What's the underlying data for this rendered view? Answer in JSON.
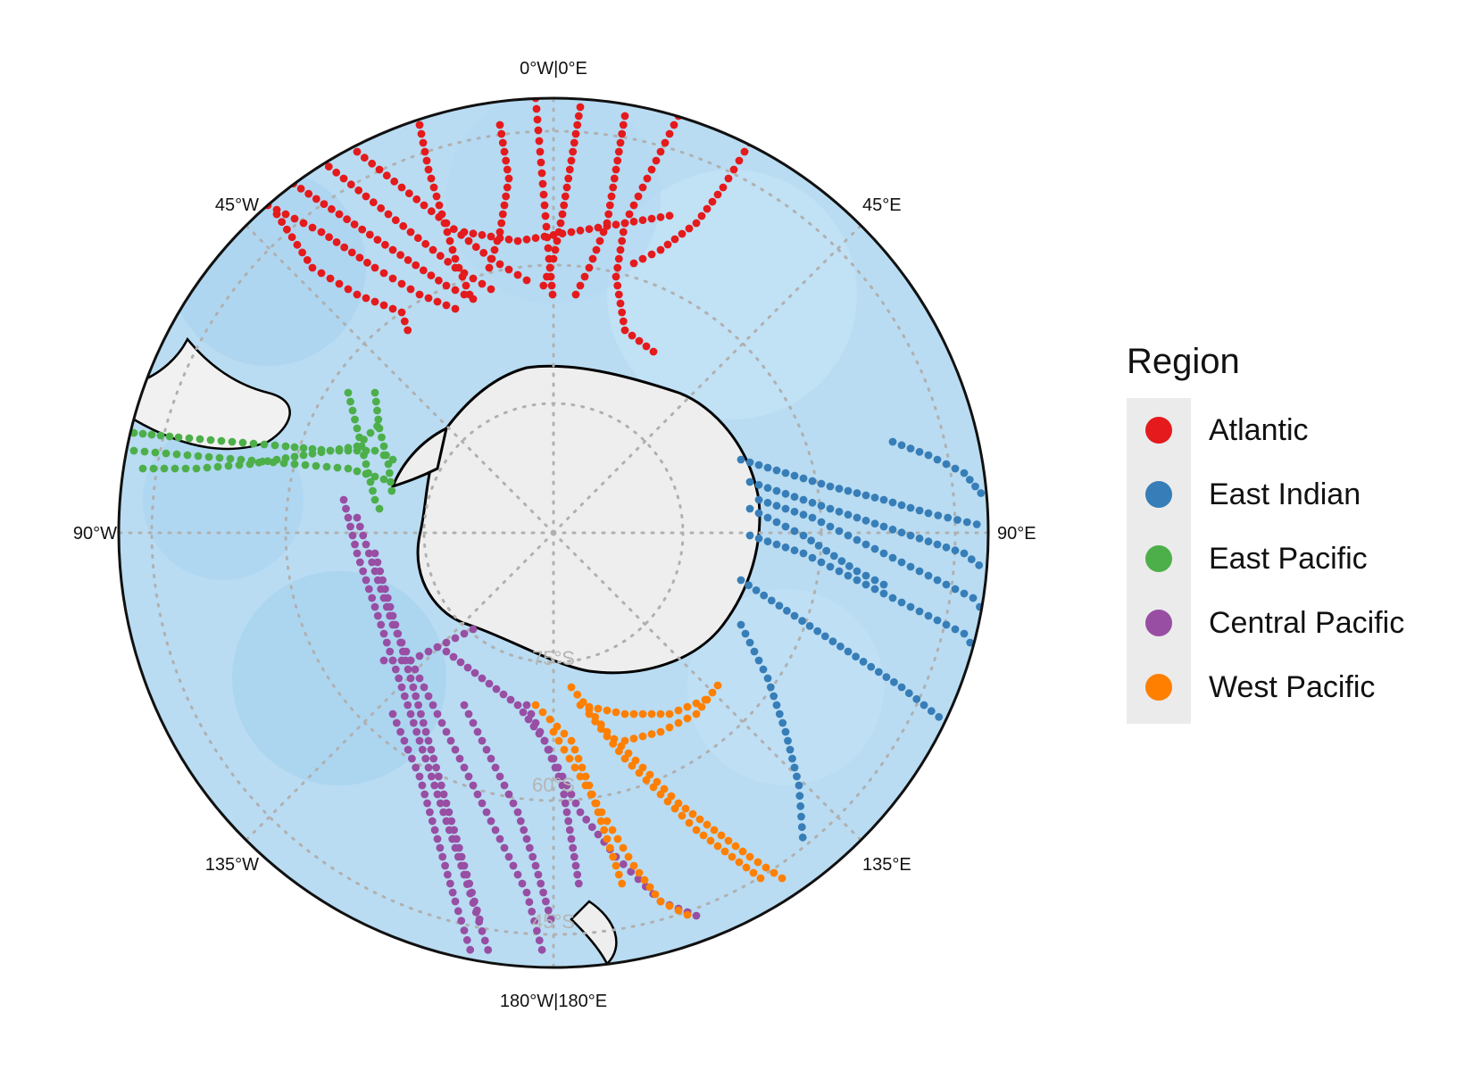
{
  "legend": {
    "title": "Region",
    "items": [
      {
        "label": "Atlantic",
        "color": "#e41a1c"
      },
      {
        "label": "East Indian",
        "color": "#377eb8"
      },
      {
        "label": "East Pacific",
        "color": "#4daf4a"
      },
      {
        "label": "Central Pacific",
        "color": "#984ea3"
      },
      {
        "label": "West Pacific",
        "color": "#ff7f00"
      }
    ]
  },
  "map": {
    "projection": "south polar stereographic",
    "ocean_color": "#b9dcf2",
    "land_color": "#ececec",
    "graticule_color": "#b0b0b0",
    "longitude_labels": [
      "0°W|0°E",
      "45°E",
      "90°E",
      "135°E",
      "180°W|180°E",
      "135°W",
      "90°W",
      "45°W"
    ],
    "latitude_labels": [
      "75°S",
      "60°S",
      "45°S"
    ]
  }
}
